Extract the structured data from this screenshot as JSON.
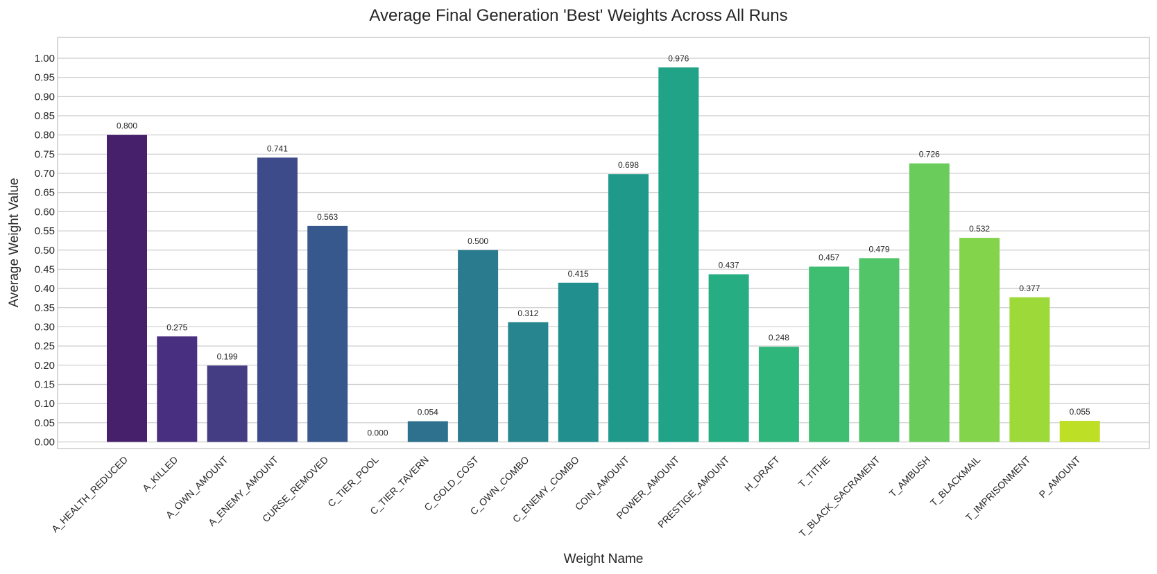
{
  "chart_data": {
    "type": "bar",
    "title": "Average Final Generation 'Best' Weights Across All Runs",
    "xlabel": "Weight Name",
    "ylabel": "Average Weight Value",
    "ylim": [
      -0.02,
      1.05
    ],
    "yticks": [
      0.0,
      0.05,
      0.1,
      0.15,
      0.2,
      0.25,
      0.3,
      0.35,
      0.4,
      0.45,
      0.5,
      0.55,
      0.6,
      0.65,
      0.7,
      0.75,
      0.8,
      0.85,
      0.9,
      0.95,
      1.0
    ],
    "ytick_labels": [
      "0.00",
      "0.05",
      "0.10",
      "0.15",
      "0.20",
      "0.25",
      "0.30",
      "0.35",
      "0.40",
      "0.45",
      "0.50",
      "0.55",
      "0.60",
      "0.65",
      "0.70",
      "0.75",
      "0.80",
      "0.85",
      "0.90",
      "0.95",
      "1.00"
    ],
    "grid": true,
    "categories": [
      "A_HEALTH_REDUCED",
      "A_KILLED",
      "A_OWN_AMOUNT",
      "A_ENEMY_AMOUNT",
      "CURSE_REMOVED",
      "C_TIER_POOL",
      "C_TIER_TAVERN",
      "C_GOLD_COST",
      "C_OWN_COMBO",
      "C_ENEMY_COMBO",
      "COIN_AMOUNT",
      "POWER_AMOUNT",
      "PRESTIGE_AMOUNT",
      "H_DRAFT",
      "T_TITHE",
      "T_BLACK_SACRAMENT",
      "T_AMBUSH",
      "T_BLACKMAIL",
      "T_IMPRISONMENT",
      "P_AMOUNT"
    ],
    "values": [
      0.8,
      0.275,
      0.199,
      0.741,
      0.563,
      0.0,
      0.054,
      0.5,
      0.312,
      0.415,
      0.698,
      0.976,
      0.437,
      0.248,
      0.457,
      0.479,
      0.726,
      0.532,
      0.377,
      0.055
    ],
    "value_labels": [
      "0.800",
      "0.275",
      "0.199",
      "0.741",
      "0.563",
      "0.000",
      "0.054",
      "0.500",
      "0.312",
      "0.415",
      "0.698",
      "0.976",
      "0.437",
      "0.248",
      "0.457",
      "0.479",
      "0.726",
      "0.532",
      "0.377",
      "0.055"
    ],
    "colors": [
      "#46206b",
      "#482f7f",
      "#443d84",
      "#3d4b8a",
      "#37588c",
      "#31668e",
      "#2d718e",
      "#2a7b8e",
      "#26858e",
      "#218f8d",
      "#1f998a",
      "#20a386",
      "#26ad81",
      "#2fb67b",
      "#3fbe72",
      "#52c569",
      "#6acd5b",
      "#84d44b",
      "#9ed93a",
      "#bddf26"
    ]
  }
}
